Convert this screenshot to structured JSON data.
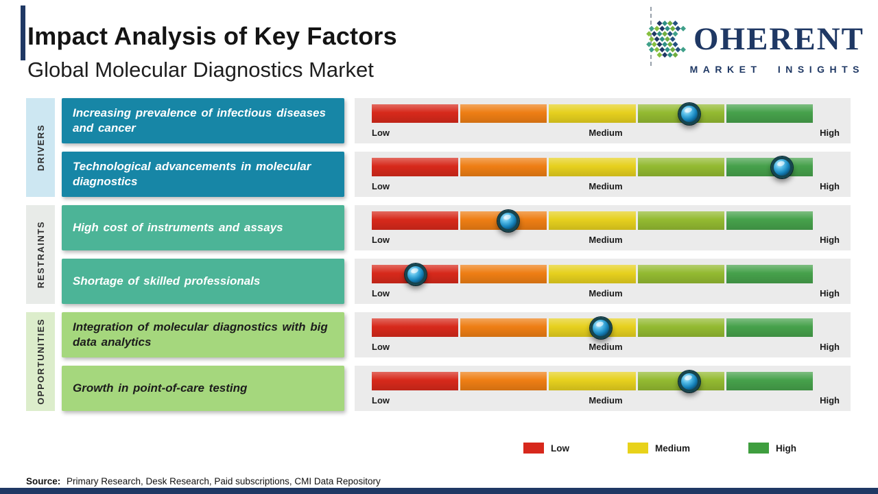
{
  "page": {
    "title": "Impact Analysis of Key Factors",
    "subtitle": "Global Molecular Diagnostics Market"
  },
  "logo": {
    "company": "Coherent Market Insights",
    "icon": "dotted-c-emblem",
    "word": "OHERENT",
    "tagline": "MARKET INSIGHTS",
    "color": "#1f3864"
  },
  "sidebar": {
    "groups": [
      {
        "label": "DRIVERS",
        "band_color": "#cde7f2",
        "box_color": "#1786a6"
      },
      {
        "label": "RESTRAINTS",
        "band_color": "#e8ebe8",
        "box_color": "#4cb497"
      },
      {
        "label": "OPPORTUNITIES",
        "band_color": "#dcedcb",
        "box_color": "#a5d77d"
      }
    ]
  },
  "source": {
    "prefix": "Source:",
    "text": "Primary Research, Desk Research, Paid subscriptions, CMI Data Repository"
  },
  "chart_data": {
    "type": "bullet-scale",
    "title": "Impact Analysis of Key Factors",
    "subtitle": "Global Molecular Diagnostics Market",
    "scale_ticks": [
      "Low",
      "Medium",
      "High"
    ],
    "scale_range": [
      0,
      1
    ],
    "segment_colors": [
      "#d7291b",
      "#ee7e14",
      "#e6d01e",
      "#93ba31",
      "#46a14b"
    ],
    "strip_background": "#ebebeb",
    "legend_position": "bottom-right",
    "groups": [
      {
        "name": "Drivers",
        "factors": [
          {
            "label": "Increasing prevalence of infectious diseases and cancer",
            "impact_position": 0.72,
            "impact_level": "Medium-High"
          },
          {
            "label": "Technological advancements in molecular diagnostics",
            "impact_position": 0.93,
            "impact_level": "High"
          }
        ]
      },
      {
        "name": "Restraints",
        "factors": [
          {
            "label": "High cost of instruments and assays",
            "impact_position": 0.31,
            "impact_level": "Low-Medium"
          },
          {
            "label": "Shortage of skilled professionals",
            "impact_position": 0.1,
            "impact_level": "Low"
          }
        ]
      },
      {
        "name": "Opportunities",
        "factors": [
          {
            "label": "Integration of molecular diagnostics with big data analytics",
            "impact_position": 0.52,
            "impact_level": "Medium"
          },
          {
            "label": "Growth in point-of-care testing",
            "impact_position": 0.72,
            "impact_level": "Medium-High"
          }
        ]
      }
    ],
    "legend": [
      {
        "label": "Low",
        "color": "#d7281c"
      },
      {
        "label": "Medium",
        "color": "#e8d21a"
      },
      {
        "label": "High",
        "color": "#3f9e3f"
      }
    ]
  }
}
